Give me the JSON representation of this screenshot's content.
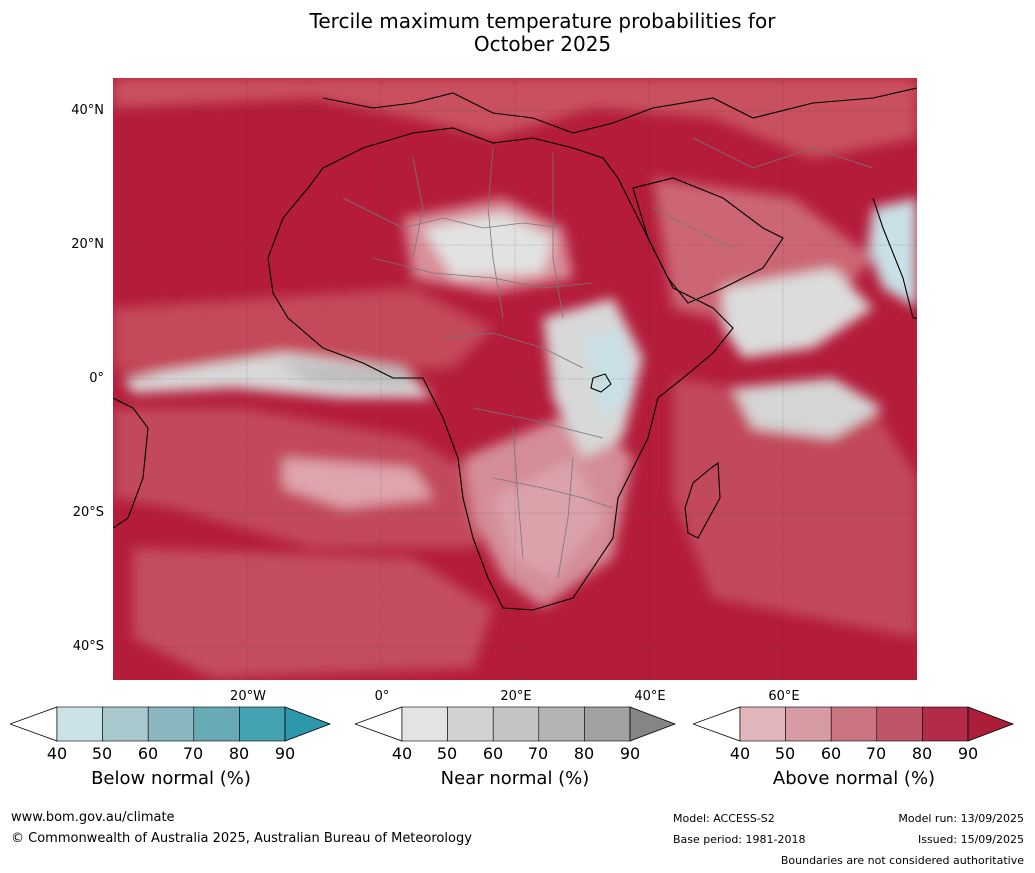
{
  "title": {
    "line1": "Tercile maximum temperature probabilities for",
    "line2": "October 2025"
  },
  "map": {
    "latitude_labels": [
      "40°N",
      "20°N",
      "0°",
      "20°S",
      "40°S"
    ],
    "longitude_labels": [
      "20°W",
      "0°",
      "20°E",
      "40°E",
      "60°E"
    ],
    "colors": {
      "above_dark": "#b41c3a",
      "above_mid": "#c44a5e",
      "above_light": "#d8939c",
      "near_light": "#e2e2e2",
      "near_mid": "#bcbcbc",
      "below_light": "#c8e0e6"
    }
  },
  "legends": [
    {
      "label": "Below normal (%)",
      "ticks": [
        "40",
        "50",
        "60",
        "70",
        "80",
        "90"
      ],
      "colors": [
        "#ffffff",
        "#cbe2e7",
        "#a9c9cf",
        "#89b6bf",
        "#69aab7",
        "#43a2b1",
        "#2f97ab"
      ]
    },
    {
      "label": "Near normal (%)",
      "ticks": [
        "40",
        "50",
        "60",
        "70",
        "80",
        "90"
      ],
      "colors": [
        "#ffffff",
        "#e3e3e3",
        "#d2d2d2",
        "#c4c4c4",
        "#b4b4b4",
        "#a2a2a2",
        "#858585"
      ]
    },
    {
      "label": "Above normal (%)",
      "ticks": [
        "40",
        "50",
        "60",
        "70",
        "80",
        "90"
      ],
      "colors": [
        "#ffffff",
        "#e2b4bb",
        "#d79ba3",
        "#ca7480",
        "#bf5567",
        "#b22c49",
        "#ab1e39"
      ]
    }
  ],
  "footer": {
    "website": "www.bom.gov.au/climate",
    "copyright": "© Commonwealth of Australia 2025, Australian Bureau of Meteorology",
    "model": "Model: ACCESS-S2",
    "base_period": "Base period: 1981-2018",
    "model_run": "Model run: 13/09/2025",
    "issued": "Issued: 15/09/2025",
    "disclaimer": "Boundaries are not considered authoritative"
  }
}
